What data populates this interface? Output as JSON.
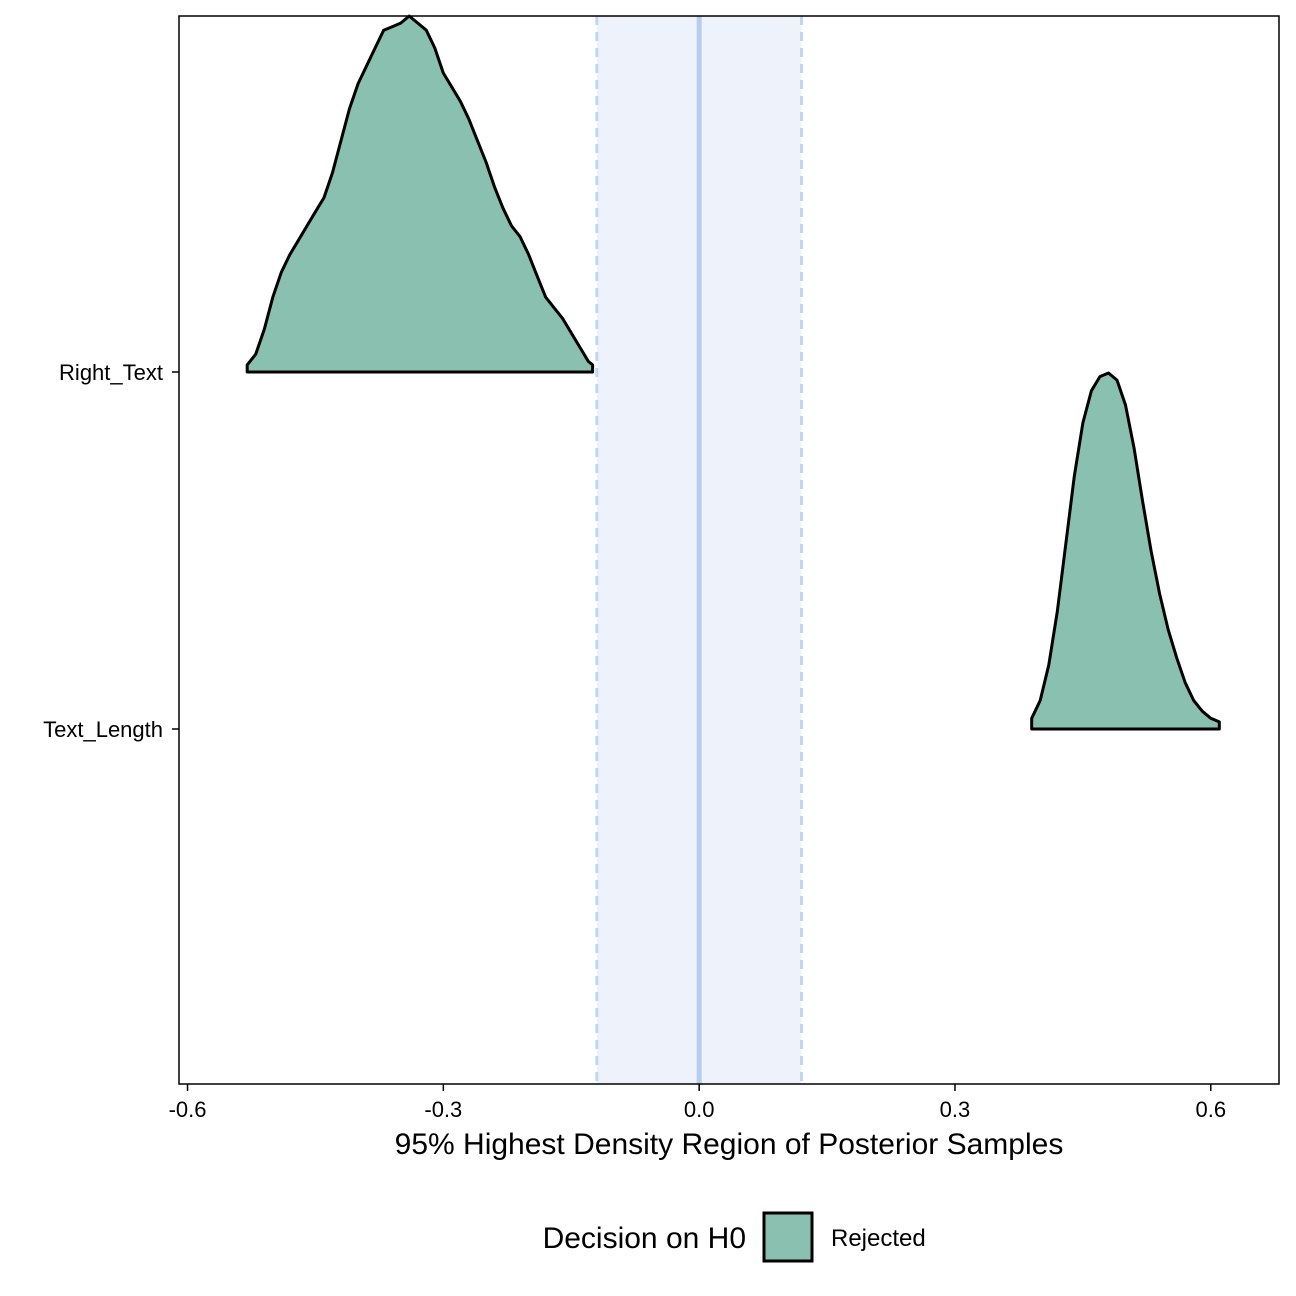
{
  "chart_data": {
    "type": "ridgeline-density",
    "xlabel": "95% Highest Density Region of Posterior Samples",
    "xlim": [
      -0.61,
      0.68
    ],
    "x_ticks": [
      "-0.6",
      "-0.3",
      "0.0",
      "0.3",
      "0.6"
    ],
    "x_tick_values": [
      -0.6,
      -0.3,
      0.0,
      0.3,
      0.6
    ],
    "categories": [
      "Right_Text",
      "Text_Length"
    ],
    "rope": {
      "low": -0.12,
      "high": 0.12,
      "center": 0.0
    },
    "colors": {
      "fill": "#8ac0b0",
      "outline": "#000000",
      "rope_band": "#eef3fb",
      "rope_line": "#b6cdeb",
      "rope_dash": "#c0d6f5"
    },
    "series": [
      {
        "category": "Right_Text",
        "x": [
          -0.53,
          -0.52,
          -0.51,
          -0.5,
          -0.49,
          -0.48,
          -0.47,
          -0.46,
          -0.45,
          -0.44,
          -0.43,
          -0.42,
          -0.41,
          -0.4,
          -0.39,
          -0.38,
          -0.37,
          -0.36,
          -0.35,
          -0.34,
          -0.33,
          -0.32,
          -0.31,
          -0.3,
          -0.29,
          -0.28,
          -0.27,
          -0.26,
          -0.25,
          -0.24,
          -0.23,
          -0.22,
          -0.21,
          -0.2,
          -0.19,
          -0.18,
          -0.17,
          -0.16,
          -0.15,
          -0.14,
          -0.13,
          -0.125
        ],
        "density": [
          0.02,
          0.05,
          0.12,
          0.21,
          0.28,
          0.33,
          0.37,
          0.41,
          0.45,
          0.49,
          0.56,
          0.65,
          0.74,
          0.81,
          0.86,
          0.91,
          0.96,
          0.97,
          0.98,
          1.0,
          0.98,
          0.96,
          0.91,
          0.84,
          0.8,
          0.76,
          0.71,
          0.65,
          0.59,
          0.52,
          0.46,
          0.41,
          0.38,
          0.33,
          0.27,
          0.21,
          0.18,
          0.15,
          0.11,
          0.07,
          0.03,
          0.02
        ]
      },
      {
        "category": "Text_Length",
        "x": [
          0.39,
          0.4,
          0.41,
          0.42,
          0.43,
          0.44,
          0.45,
          0.46,
          0.47,
          0.48,
          0.49,
          0.5,
          0.51,
          0.52,
          0.53,
          0.54,
          0.55,
          0.56,
          0.57,
          0.58,
          0.59,
          0.6,
          0.61
        ],
        "density": [
          0.03,
          0.08,
          0.18,
          0.33,
          0.52,
          0.71,
          0.86,
          0.95,
          0.99,
          1.0,
          0.98,
          0.91,
          0.79,
          0.64,
          0.5,
          0.38,
          0.28,
          0.2,
          0.13,
          0.08,
          0.05,
          0.03,
          0.02
        ]
      }
    ],
    "legend": {
      "title": "Decision on H0",
      "entries": [
        {
          "label": "Rejected"
        }
      ],
      "placement": "bottom"
    }
  }
}
